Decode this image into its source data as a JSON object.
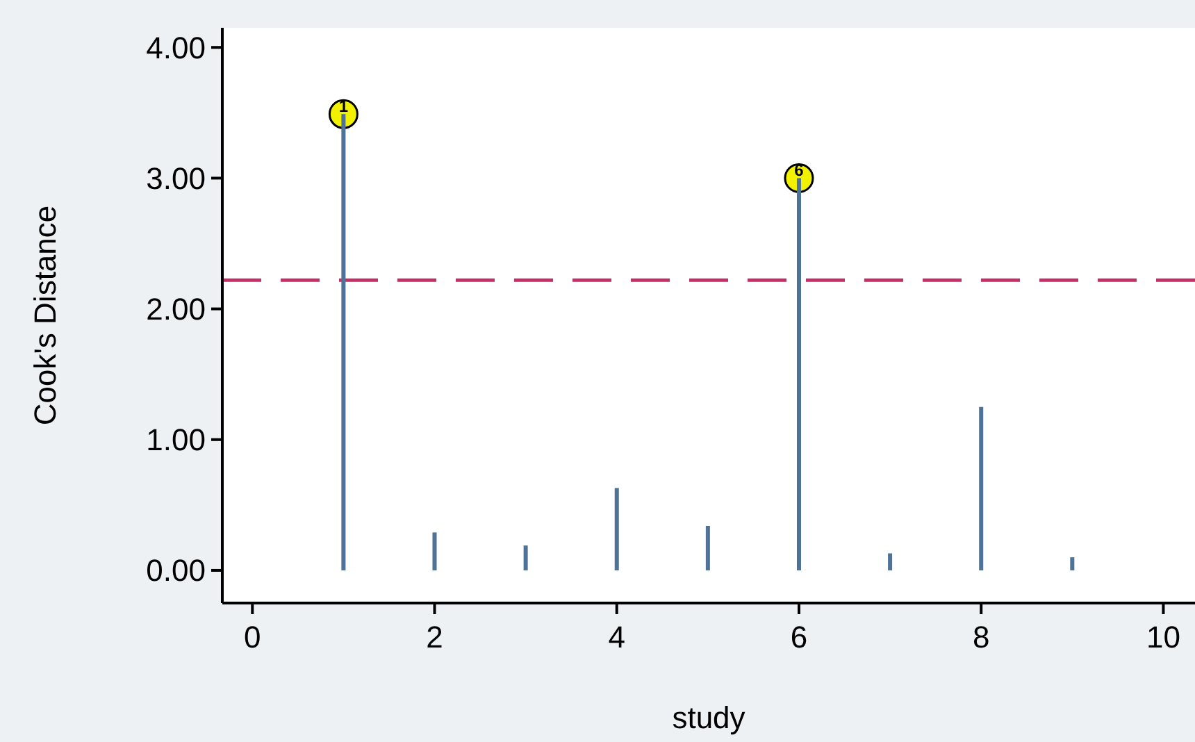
{
  "chart_data": {
    "type": "bar",
    "xlabel": "study",
    "ylabel": "Cook's Distance",
    "x": [
      1,
      2,
      3,
      4,
      5,
      6,
      7,
      8,
      9
    ],
    "series": [
      {
        "color": "#4f7396",
        "values": [
          3.49,
          0.29,
          0.19,
          0.63,
          0.34,
          3.0,
          0.13,
          1.25,
          0.1
        ]
      },
      {
        "type": "scatter",
        "color": "#f2f200",
        "x": [
          1,
          6
        ],
        "values": [
          3.49,
          3.0
        ],
        "marker": "circle"
      }
    ],
    "annotations": [
      {
        "text": "1",
        "x": 1,
        "y": 3.49
      },
      {
        "text": "6",
        "x": 6,
        "y": 3.0
      }
    ],
    "ref_lines": [
      {
        "axis": "y",
        "value": 2.22,
        "color": "#c2306a",
        "line_style": "dashed"
      }
    ],
    "xlim": [
      -0.33,
      10.5
    ],
    "xticks": [
      0,
      2,
      4,
      6,
      8,
      10
    ],
    "ylim": [
      -0.25,
      4.15
    ],
    "yticks": [
      {
        "value": 0,
        "label": "0.00"
      },
      {
        "value": 1,
        "label": "1.00"
      },
      {
        "value": 2,
        "label": "2.00"
      },
      {
        "value": 3,
        "label": "3.00"
      },
      {
        "value": 4,
        "label": "4.00"
      }
    ],
    "grid": false
  }
}
